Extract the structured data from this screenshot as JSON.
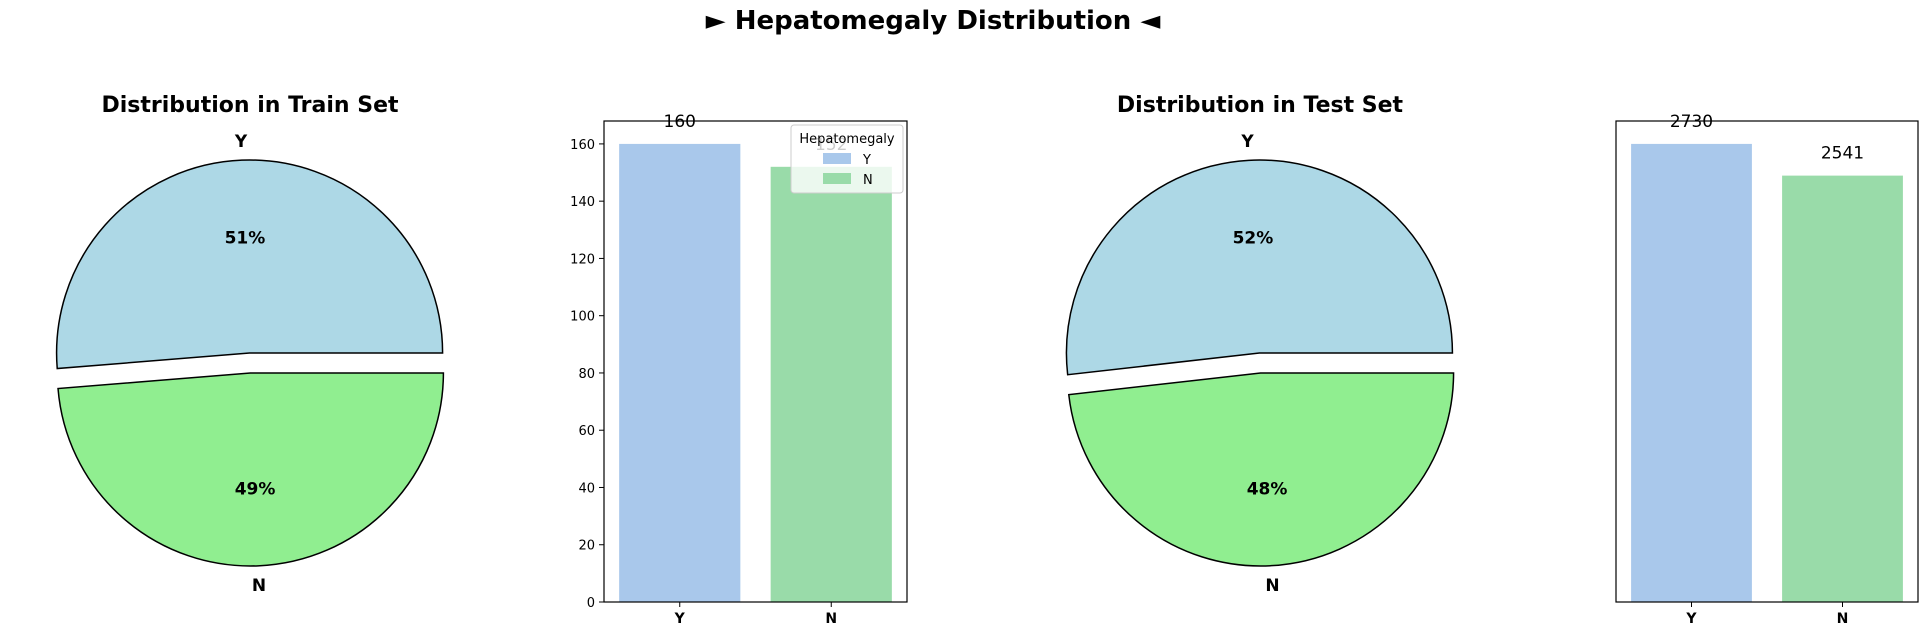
{
  "suptitle": "► Hepatomegaly Distribution ◄",
  "chart_data": [
    {
      "type": "pie",
      "title": "Distribution in Train Set",
      "categories": [
        "Y",
        "N"
      ],
      "values": [
        160,
        152
      ],
      "percent_labels": [
        "51%",
        "49%"
      ],
      "colors": [
        "#add8e6",
        "#90ee90"
      ],
      "exploded": true
    },
    {
      "type": "bar",
      "title": "",
      "categories": [
        "Y",
        "N"
      ],
      "values": [
        160,
        152
      ],
      "data_labels": [
        "160",
        "152"
      ],
      "colors": [
        "#a9c8eb",
        "#99dba9"
      ],
      "ylim": [
        0,
        168
      ],
      "yticks": [
        0,
        20,
        40,
        60,
        80,
        100,
        120,
        140,
        160
      ],
      "show_yticks": true,
      "legend": {
        "title": "Hepatomegaly",
        "entries": [
          "Y",
          "N"
        ],
        "placement": "top-right"
      }
    },
    {
      "type": "pie",
      "title": "Distribution in Test Set",
      "categories": [
        "Y",
        "N"
      ],
      "values": [
        2730,
        2541
      ],
      "percent_labels": [
        "52%",
        "48%"
      ],
      "colors": [
        "#add8e6",
        "#90ee90"
      ],
      "exploded": true
    },
    {
      "type": "bar",
      "title": "",
      "categories": [
        "Y",
        "N"
      ],
      "values": [
        2730,
        2541
      ],
      "data_labels": [
        "2730",
        "2541"
      ],
      "colors": [
        "#a9c8eb",
        "#99dba9"
      ],
      "ylim": [
        0,
        2866.5
      ],
      "yticks": [],
      "show_yticks": false
    }
  ]
}
